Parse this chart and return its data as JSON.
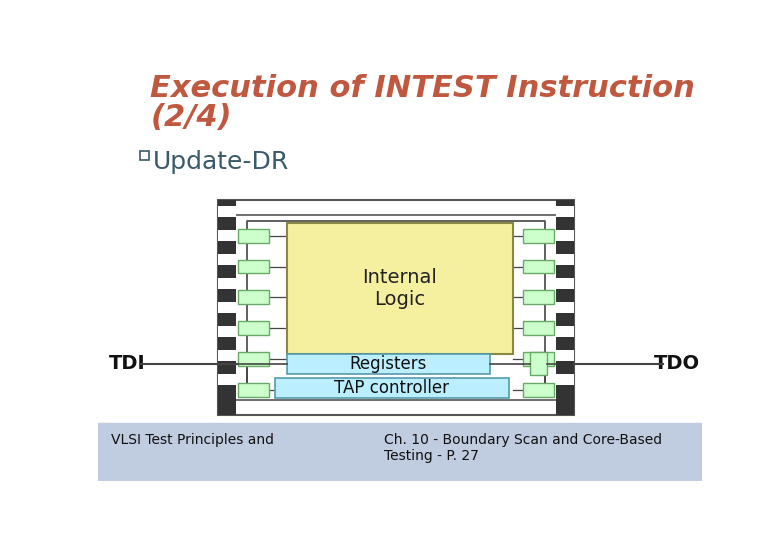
{
  "title_line1": "Execution of INTEST Instruction",
  "title_line2": "(2/4)",
  "title_color": "#C05840",
  "title_fontsize": 22,
  "title_style": "italic",
  "title_weight": "bold",
  "bullet_text": "Update-DR",
  "bullet_fontsize": 18,
  "bullet_color": "#3A5A6A",
  "footer_left": "VLSI Test Principles and",
  "footer_right": "Ch. 10 - Boundary Scan and Core-Based\nTesting - P. 27",
  "footer_fontsize": 10,
  "footer_color": "#111111",
  "chip_outline_color": "#555555",
  "chip_bg": "#ffffff",
  "internal_logic_color": "#F5F0A0",
  "internal_logic_label": "Internal\nLogic",
  "registers_color": "#BBEEFF",
  "registers_label": "Registers",
  "tap_color": "#BBEEFF",
  "tap_label": "TAP controller",
  "bsc_color": "#CCFFCC",
  "bsc_edge": "#66AA66",
  "tdi_label": "TDI",
  "tdo_label": "TDO",
  "pin_black": "#333333",
  "line_color": "#444444",
  "footer_bg": "#C0CCE0"
}
